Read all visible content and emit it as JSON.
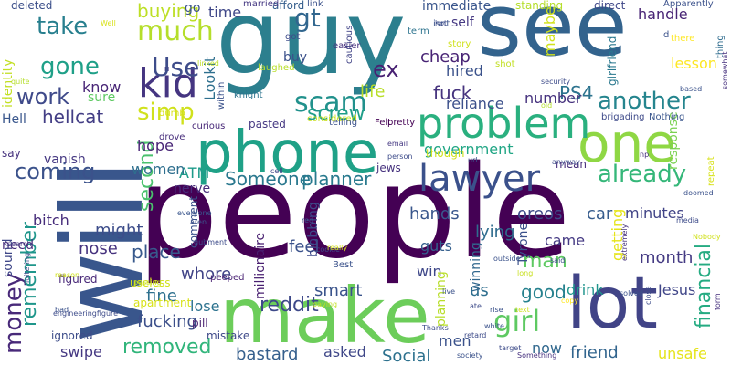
{
  "words": [
    {
      "text": "people",
      "color": "#440154"
    },
    {
      "text": "guy",
      "color": "#2c7f8e"
    },
    {
      "text": "see",
      "color": "#33638d"
    },
    {
      "text": "will",
      "color": "#39568c"
    },
    {
      "text": "make",
      "color": "#6ccd5a"
    },
    {
      "text": "phone",
      "color": "#1fa187"
    },
    {
      "text": "lot",
      "color": "#414487"
    },
    {
      "text": "one",
      "color": "#8fd744"
    },
    {
      "text": "problem",
      "color": "#2ab07f"
    },
    {
      "text": "lawyer",
      "color": "#3b518b"
    },
    {
      "text": "kid",
      "color": "#453581"
    },
    {
      "text": "much",
      "color": "#b5de2b"
    },
    {
      "text": "take",
      "color": "#277f8e"
    },
    {
      "text": "gone",
      "color": "#1fa088"
    },
    {
      "text": "work",
      "color": "#3f4a8a"
    },
    {
      "text": "coming",
      "color": "#3b528b"
    },
    {
      "text": "scam",
      "color": "#21918c"
    },
    {
      "text": "gt",
      "color": "#31668e"
    },
    {
      "text": "ex",
      "color": "#482173"
    },
    {
      "text": "Use",
      "color": "#3e4c8a"
    },
    {
      "text": "simp",
      "color": "#d0e11c"
    },
    {
      "text": "screw",
      "color": "#1f9e89"
    },
    {
      "text": "another",
      "color": "#25858e"
    },
    {
      "text": "already",
      "color": "#35b779"
    },
    {
      "text": "girl",
      "color": "#5ec962"
    },
    {
      "text": "money",
      "color": "#482979"
    },
    {
      "text": "remember",
      "color": "#1f968b"
    },
    {
      "text": "second",
      "color": "#4ac16d"
    },
    {
      "text": "Someone",
      "color": "#2a788e"
    },
    {
      "text": "planner",
      "color": "#297a8e"
    },
    {
      "text": "financial",
      "color": "#25ab82"
    },
    {
      "text": "fuck",
      "color": "#46337e"
    },
    {
      "text": "PS4",
      "color": "#2c738e"
    },
    {
      "text": "good",
      "color": "#26818e"
    },
    {
      "text": "removed",
      "color": "#31b57b"
    },
    {
      "text": "fucking",
      "color": "#3c4f8a"
    },
    {
      "text": "reddit",
      "color": "#3e4989"
    },
    {
      "text": "identity",
      "color": "#c2df23"
    },
    {
      "text": "hellcat",
      "color": "#433e85"
    },
    {
      "text": "Lookit",
      "color": "#2e6f8e"
    },
    {
      "text": "bitch",
      "color": "#472d7b"
    },
    {
      "text": "might",
      "color": "#3d4d8a"
    },
    {
      "text": "nose",
      "color": "#46327e"
    },
    {
      "text": "place",
      "color": "#38598c"
    },
    {
      "text": "fine",
      "color": "#2d708e"
    },
    {
      "text": "whore",
      "color": "#414487"
    },
    {
      "text": "lose",
      "color": "#2c728e"
    },
    {
      "text": "swipe",
      "color": "#453882"
    },
    {
      "text": "bastard",
      "color": "#355f8d"
    },
    {
      "text": "asked",
      "color": "#3f4788"
    },
    {
      "text": "Social",
      "color": "#2d718e"
    },
    {
      "text": "friend",
      "color": "#32658e"
    },
    {
      "text": "unsafe",
      "color": "#e5e419"
    },
    {
      "text": "men",
      "color": "#3b528b"
    },
    {
      "text": "now",
      "color": "#31688e"
    },
    {
      "text": "smart",
      "color": "#3a538b"
    },
    {
      "text": "man",
      "color": "#5ec962"
    },
    {
      "text": "month",
      "color": "#443a83"
    },
    {
      "text": "drink",
      "color": "#1f948c"
    },
    {
      "text": "Jesus",
      "color": "#404688"
    },
    {
      "text": "hands",
      "color": "#39568c"
    },
    {
      "text": "oreos",
      "color": "#3e4a89"
    },
    {
      "text": "lying",
      "color": "#2f6c8e"
    },
    {
      "text": "car",
      "color": "#365c8d"
    },
    {
      "text": "minutes",
      "color": "#414487"
    },
    {
      "text": "came",
      "color": "#443983"
    },
    {
      "text": "feel",
      "color": "#3b528b"
    },
    {
      "text": "guts",
      "color": "#355f8d"
    },
    {
      "text": "win",
      "color": "#3f4889"
    },
    {
      "text": "us",
      "color": "#2e6e8e"
    },
    {
      "text": "hope",
      "color": "#482576"
    },
    {
      "text": "ATM",
      "color": "#1e9b8a"
    },
    {
      "text": "nerve",
      "color": "#472c7a"
    },
    {
      "text": "women",
      "color": "#2e6f8e"
    },
    {
      "text": "number",
      "color": "#46327e"
    },
    {
      "text": "government",
      "color": "#21a685"
    },
    {
      "text": "cheap",
      "color": "#482475"
    },
    {
      "text": "hired",
      "color": "#3b528b"
    },
    {
      "text": "reliance",
      "color": "#3c508b"
    },
    {
      "text": "life",
      "color": "#b8de29"
    },
    {
      "text": "maybe",
      "color": "#d2e21b"
    },
    {
      "text": "girlfriend",
      "color": "#2a788e"
    },
    {
      "text": "lesson",
      "color": "#fde725"
    },
    {
      "text": "handle",
      "color": "#482475"
    },
    {
      "text": "buying",
      "color": "#bddf26"
    },
    {
      "text": "time",
      "color": "#3f4788"
    },
    {
      "text": "go",
      "color": "#3b528b"
    },
    {
      "text": "deleted",
      "color": "#3c4f8a"
    },
    {
      "text": "afford",
      "color": "#355e8d"
    },
    {
      "text": "immediate",
      "color": "#39558c"
    },
    {
      "text": "self",
      "color": "#453882"
    },
    {
      "text": "buy",
      "color": "#3b518b"
    },
    {
      "text": "know",
      "color": "#482576"
    },
    {
      "text": "sure",
      "color": "#5ec962"
    },
    {
      "text": "Hell",
      "color": "#39568c"
    },
    {
      "text": "say",
      "color": "#46327e"
    },
    {
      "text": "vanish",
      "color": "#453882"
    },
    {
      "text": "need",
      "color": "#472d7b"
    },
    {
      "text": "sound",
      "color": "#3f4788"
    },
    {
      "text": "millionaire",
      "color": "#481f70"
    },
    {
      "text": "blabbing",
      "color": "#3e4a89"
    },
    {
      "text": "getting",
      "color": "#e5e419"
    },
    {
      "text": "Tyrone",
      "color": "#3b518b"
    },
    {
      "text": "winning",
      "color": "#31688e"
    },
    {
      "text": "planning",
      "color": "#b8de29"
    },
    {
      "text": "response",
      "color": "#7ad151"
    },
    {
      "text": "comment",
      "color": "#3b528b"
    },
    {
      "text": "apartment",
      "color": "#d8e219"
    },
    {
      "text": "useless",
      "color": "#d2e21b"
    },
    {
      "text": "peeped",
      "color": "#482173"
    },
    {
      "text": "ignored",
      "color": "#3d4d8a"
    },
    {
      "text": "figured",
      "color": "#482878"
    },
    {
      "text": "pill",
      "color": "#481f70"
    },
    {
      "text": "mistake",
      "color": "#3e4989"
    },
    {
      "text": "dumb",
      "color": "#d8e219"
    },
    {
      "text": "drove",
      "color": "#472d7b"
    },
    {
      "text": "curious",
      "color": "#482878"
    },
    {
      "text": "pasted",
      "color": "#453882"
    },
    {
      "text": "considered",
      "color": "#c8e020"
    },
    {
      "text": "telling",
      "color": "#3b528b"
    },
    {
      "text": "Felt",
      "color": "#440154"
    },
    {
      "text": "pretty",
      "color": "#440154"
    },
    {
      "text": "jews",
      "color": "#46327e"
    },
    {
      "text": "mean",
      "color": "#472d7b"
    },
    {
      "text": "though",
      "color": "#d0e11c"
    },
    {
      "text": "brigading",
      "color": "#3e4a89"
    },
    {
      "text": "Nothing",
      "color": "#39558c"
    },
    {
      "text": "Apparently",
      "color": "#3b518b"
    },
    {
      "text": "direct",
      "color": "#3f4788"
    },
    {
      "text": "standing",
      "color": "#b5de2b"
    },
    {
      "text": "married",
      "color": "#453882"
    },
    {
      "text": "link",
      "color": "#3b528b"
    },
    {
      "text": "got",
      "color": "#3e4c8a"
    },
    {
      "text": "easier",
      "color": "#46307e"
    },
    {
      "text": "cautious",
      "color": "#414487"
    },
    {
      "text": "term",
      "color": "#2c738e"
    },
    {
      "text": "isnt",
      "color": "#3b528b"
    },
    {
      "text": "story",
      "color": "#d0e11c"
    },
    {
      "text": "shot",
      "color": "#c2df23"
    },
    {
      "text": "hot",
      "color": "#3e4c8a"
    },
    {
      "text": "d",
      "color": "#3b528b"
    },
    {
      "text": "there",
      "color": "#fde725"
    },
    {
      "text": "thing",
      "color": "#2f6c8e"
    },
    {
      "text": "Well",
      "color": "#d8e219"
    },
    {
      "text": "linked",
      "color": "#bddf26"
    },
    {
      "text": "laughed",
      "color": "#b8de29"
    },
    {
      "text": "knight",
      "color": "#2c738e"
    },
    {
      "text": "within",
      "color": "#3b528b"
    },
    {
      "text": "quite",
      "color": "#b5de2b"
    },
    {
      "text": "security",
      "color": "#3e4c8a"
    },
    {
      "text": "old",
      "color": "#b5de2b"
    },
    {
      "text": "np",
      "color": "#46307e"
    },
    {
      "text": "based",
      "color": "#3b528b"
    },
    {
      "text": "somewhat",
      "color": "#46307e"
    },
    {
      "text": "everyone",
      "color": "#39558c"
    },
    {
      "text": "cell",
      "color": "#3f4788"
    },
    {
      "text": "email",
      "color": "#453882"
    },
    {
      "text": "person",
      "color": "#3e4c8a"
    },
    {
      "text": "url",
      "color": "#3b528b"
    },
    {
      "text": "anyway",
      "color": "#3e4c8a"
    },
    {
      "text": "repeat",
      "color": "#d8e219"
    },
    {
      "text": "doomed",
      "color": "#3b528b"
    },
    {
      "text": "media",
      "color": "#3e4c8a"
    },
    {
      "text": "Nobody",
      "color": "#d0e11c"
    },
    {
      "text": "red",
      "color": "#3b528b"
    },
    {
      "text": "cookie",
      "color": "#3e4c8a"
    },
    {
      "text": "really",
      "color": "#d8e219"
    },
    {
      "text": "Best",
      "color": "#3b528b"
    },
    {
      "text": "said",
      "color": "#3e4c8a"
    },
    {
      "text": "long",
      "color": "#c8e020"
    },
    {
      "text": "outside",
      "color": "#3b528b"
    },
    {
      "text": "extremely",
      "color": "#46327e"
    },
    {
      "text": "gubment",
      "color": "#3e4c8a"
    },
    {
      "text": "aren",
      "color": "#3b528b"
    },
    {
      "text": "search",
      "color": "#453882"
    },
    {
      "text": "reason",
      "color": "#d0e11c"
    },
    {
      "text": "passing",
      "color": "#c8e020"
    },
    {
      "text": "loitering",
      "color": "#3e4c8a"
    },
    {
      "text": "bad",
      "color": "#3b528b"
    },
    {
      "text": "engineeringfigure",
      "color": "#3e4c8a"
    },
    {
      "text": "paying",
      "color": "#c2df23"
    },
    {
      "text": "live",
      "color": "#3b528b"
    },
    {
      "text": "ate",
      "color": "#3e4c8a"
    },
    {
      "text": "rise",
      "color": "#3b528b"
    },
    {
      "text": "text",
      "color": "#d0e11c"
    },
    {
      "text": "copy",
      "color": "#fde725"
    },
    {
      "text": "solved",
      "color": "#3b528b"
    },
    {
      "text": "close",
      "color": "#3e4c8a"
    },
    {
      "text": "form",
      "color": "#46307e"
    },
    {
      "text": "Thanks",
      "color": "#3e4c8a"
    },
    {
      "text": "white",
      "color": "#3b528b"
    },
    {
      "text": "retard",
      "color": "#3e4c8a"
    },
    {
      "text": "society",
      "color": "#3b528b"
    },
    {
      "text": "Something",
      "color": "#46307e"
    },
    {
      "text": "target",
      "color": "#3e4c8a"
    }
  ]
}
